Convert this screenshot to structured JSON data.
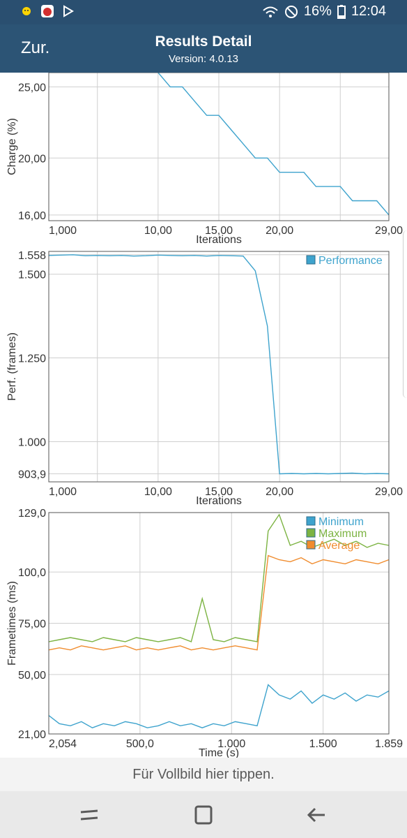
{
  "status": {
    "battery_percent": "16%",
    "time": "12:04"
  },
  "header": {
    "back_label": "Zur.",
    "title": "Results Detail",
    "version": "Version: 4.0.13"
  },
  "chart_data": [
    {
      "type": "line",
      "id": "charge",
      "ylabel": "Charge (%)",
      "xlabel": "Iterations",
      "ylim": [
        15.6,
        26.0
      ],
      "xlim": [
        1.0,
        29.0
      ],
      "x_ticks": [
        {
          "v": 1.0,
          "l": "1,000"
        },
        {
          "v": 10.0,
          "l": "10,00"
        },
        {
          "v": 15.0,
          "l": "15,00"
        },
        {
          "v": 20.0,
          "l": "20,00"
        },
        {
          "v": 29.0,
          "l": "29,00"
        }
      ],
      "y_ticks": [
        {
          "v": 25.0,
          "l": "25,00"
        },
        {
          "v": 20.0,
          "l": "20,00"
        },
        {
          "v": 16.0,
          "l": "16,00"
        }
      ],
      "x_grid": [
        1.0,
        5.0,
        10.0,
        15.0,
        20.0,
        25.0,
        29.0
      ],
      "y_grid": [
        25.0,
        20.0,
        16.0
      ],
      "legend": [],
      "series": [
        {
          "name": "",
          "color": "#3ea3cd",
          "x": [
            10,
            11,
            12,
            13,
            14,
            15,
            16,
            17,
            18,
            19,
            20,
            21,
            22,
            23,
            24,
            25,
            26,
            27,
            28,
            29
          ],
          "y": [
            26,
            25,
            25,
            24,
            23,
            23,
            22,
            21,
            20,
            20,
            19,
            19,
            19,
            18,
            18,
            18,
            17,
            17,
            17,
            16
          ]
        }
      ]
    },
    {
      "type": "line",
      "id": "performance",
      "ylabel": "Perf. (frames)",
      "xlabel": "Iterations",
      "ylim": [
        880,
        1568
      ],
      "xlim": [
        1.0,
        29.0
      ],
      "x_ticks": [
        {
          "v": 1.0,
          "l": "1,000"
        },
        {
          "v": 10.0,
          "l": "10,00"
        },
        {
          "v": 15.0,
          "l": "15,00"
        },
        {
          "v": 20.0,
          "l": "20,00"
        },
        {
          "v": 29.0,
          "l": "29,00"
        }
      ],
      "y_ticks": [
        {
          "v": 1558,
          "l": "1.558"
        },
        {
          "v": 1500,
          "l": "1.500"
        },
        {
          "v": 1250,
          "l": "1.250"
        },
        {
          "v": 1000,
          "l": "1.000"
        },
        {
          "v": 903.9,
          "l": "903,9"
        }
      ],
      "x_grid": [
        1.0,
        5.0,
        10.0,
        15.0,
        20.0,
        25.0,
        29.0
      ],
      "y_grid": [
        1558,
        1500,
        1250,
        1000,
        903.9
      ],
      "legend": [
        {
          "label": "Performance",
          "color": "#3ea3cd"
        }
      ],
      "series": [
        {
          "name": "Performance",
          "color": "#3ea3cd",
          "x": [
            1,
            2,
            3,
            4,
            5,
            6,
            7,
            8,
            9,
            10,
            11,
            12,
            13,
            14,
            15,
            16,
            17,
            18,
            19,
            20,
            21,
            22,
            23,
            24,
            25,
            26,
            27,
            28,
            29
          ],
          "y": [
            1556,
            1557,
            1558,
            1555,
            1556,
            1555,
            1556,
            1554,
            1555,
            1557,
            1556,
            1555,
            1556,
            1554,
            1556,
            1555,
            1554,
            1510,
            1345,
            904,
            905,
            904,
            905,
            904,
            905,
            906,
            904,
            905,
            904
          ]
        }
      ]
    },
    {
      "type": "line",
      "id": "frametimes",
      "ylabel": "Frametimes (ms)",
      "xlabel": "Time (s)",
      "ylim": [
        21.0,
        129.0
      ],
      "xlim": [
        2.054,
        1859
      ],
      "x_ticks": [
        {
          "v": 2.054,
          "l": "2,054"
        },
        {
          "v": 500,
          "l": "500,0"
        },
        {
          "v": 1000,
          "l": "1.000"
        },
        {
          "v": 1500,
          "l": "1.500"
        },
        {
          "v": 1859,
          "l": "1.859"
        }
      ],
      "y_ticks": [
        {
          "v": 129,
          "l": "129,0"
        },
        {
          "v": 100,
          "l": "100,0"
        },
        {
          "v": 75,
          "l": "75,00"
        },
        {
          "v": 50,
          "l": "50,00"
        },
        {
          "v": 21,
          "l": "21,00"
        }
      ],
      "x_grid": [
        2.054,
        500,
        1000,
        1500,
        1859
      ],
      "y_grid": [
        129,
        100,
        75,
        50,
        21
      ],
      "legend": [
        {
          "label": "Minimum",
          "color": "#3ea3cd"
        },
        {
          "label": "Maximum",
          "color": "#7cb342"
        },
        {
          "label": "Average",
          "color": "#f08c2e"
        }
      ],
      "series": [
        {
          "name": "Minimum",
          "color": "#3ea3cd",
          "x": [
            2,
            60,
            120,
            180,
            240,
            300,
            360,
            420,
            480,
            540,
            600,
            660,
            720,
            780,
            840,
            900,
            960,
            1020,
            1080,
            1140,
            1200,
            1260,
            1320,
            1380,
            1440,
            1500,
            1560,
            1620,
            1680,
            1740,
            1800,
            1859
          ],
          "y": [
            30,
            26,
            25,
            27,
            24,
            26,
            25,
            27,
            26,
            24,
            25,
            27,
            25,
            26,
            24,
            26,
            25,
            27,
            26,
            25,
            45,
            40,
            38,
            42,
            36,
            40,
            38,
            41,
            37,
            40,
            39,
            42
          ]
        },
        {
          "name": "Maximum",
          "color": "#7cb342",
          "x": [
            2,
            60,
            120,
            180,
            240,
            300,
            360,
            420,
            480,
            540,
            600,
            660,
            720,
            780,
            840,
            900,
            960,
            1020,
            1080,
            1140,
            1200,
            1260,
            1320,
            1380,
            1440,
            1500,
            1560,
            1620,
            1680,
            1740,
            1800,
            1859
          ],
          "y": [
            66,
            67,
            68,
            67,
            66,
            68,
            67,
            66,
            68,
            67,
            66,
            67,
            68,
            66,
            87,
            67,
            66,
            68,
            67,
            66,
            120,
            128,
            113,
            115,
            112,
            114,
            116,
            113,
            115,
            112,
            114,
            113
          ]
        },
        {
          "name": "Average",
          "color": "#f08c2e",
          "x": [
            2,
            60,
            120,
            180,
            240,
            300,
            360,
            420,
            480,
            540,
            600,
            660,
            720,
            780,
            840,
            900,
            960,
            1020,
            1080,
            1140,
            1200,
            1260,
            1320,
            1380,
            1440,
            1500,
            1560,
            1620,
            1680,
            1740,
            1800,
            1859
          ],
          "y": [
            62,
            63,
            62,
            64,
            63,
            62,
            63,
            64,
            62,
            63,
            62,
            63,
            64,
            62,
            63,
            62,
            63,
            64,
            63,
            62,
            108,
            106,
            105,
            107,
            104,
            106,
            105,
            104,
            106,
            105,
            104,
            106
          ]
        }
      ]
    }
  ],
  "footer": {
    "fullscreen_hint": "Für Vollbild hier tippen."
  }
}
